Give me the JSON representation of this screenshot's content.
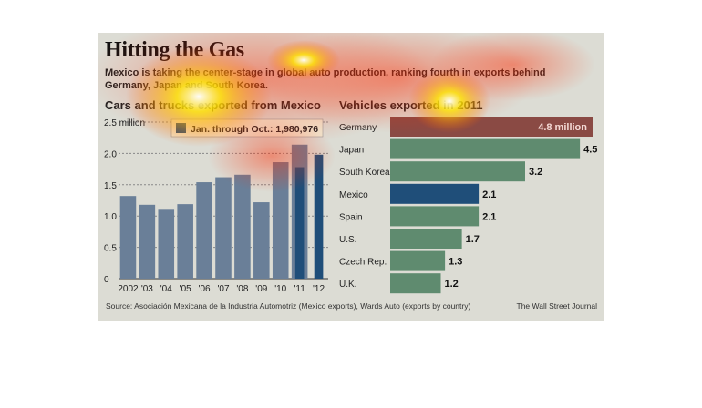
{
  "title": "Hitting the Gas",
  "subtitle": "Mexico is taking the center-stage in global auto production, ranking fourth in exports behind Germany, Japan and South Korea.",
  "source": "Source:  Asociación Mexicana de la Industria Automotriz (Mexico exports), Wards Auto (exports by country)",
  "credit": "The Wall Street Journal",
  "colors": {
    "panel_bg": "#dcdcd4",
    "left_bar": "#6a7f98",
    "highlight_bar": "#1f4e79",
    "right_bar": "#5f8b6f",
    "germany_bar": "#8a4a44",
    "mexico_bar": "#1f4e79",
    "heat_red": "#ff2a00",
    "heat_yellow": "#ffe600"
  },
  "chart_data": [
    {
      "type": "bar",
      "title": "Cars and trucks exported from Mexico",
      "categories": [
        "2002",
        "'03",
        "'04",
        "'05",
        "'06",
        "'07",
        "'08",
        "'09",
        "'10",
        "'11",
        "'12"
      ],
      "values": [
        1.32,
        1.18,
        1.1,
        1.19,
        1.54,
        1.62,
        1.66,
        1.22,
        1.86,
        2.14,
        0
      ],
      "overlay_series": {
        "name": "Jan. through Oct.: 1,980,976",
        "categories": [
          "'11",
          "'12"
        ],
        "values": [
          1.78,
          1.98
        ]
      },
      "yticks": [
        "0",
        "0.5",
        "1.0",
        "1.5",
        "2.0",
        "2.5 million"
      ],
      "ylim": [
        0,
        2.5
      ],
      "grid": true,
      "legend": "top-right"
    },
    {
      "type": "bar",
      "orientation": "horizontal",
      "title": "Vehicles exported in 2011",
      "categories": [
        "Germany",
        "Japan",
        "South Korea",
        "Mexico",
        "Spain",
        "U.S.",
        "Czech Rep.",
        "U.K."
      ],
      "values": [
        4.8,
        4.5,
        3.2,
        2.1,
        2.1,
        1.7,
        1.3,
        1.2
      ],
      "labels": [
        "4.8 million",
        "4.5",
        "3.2",
        "2.1",
        "2.1",
        "1.7",
        "1.3",
        "1.2"
      ]
    }
  ]
}
